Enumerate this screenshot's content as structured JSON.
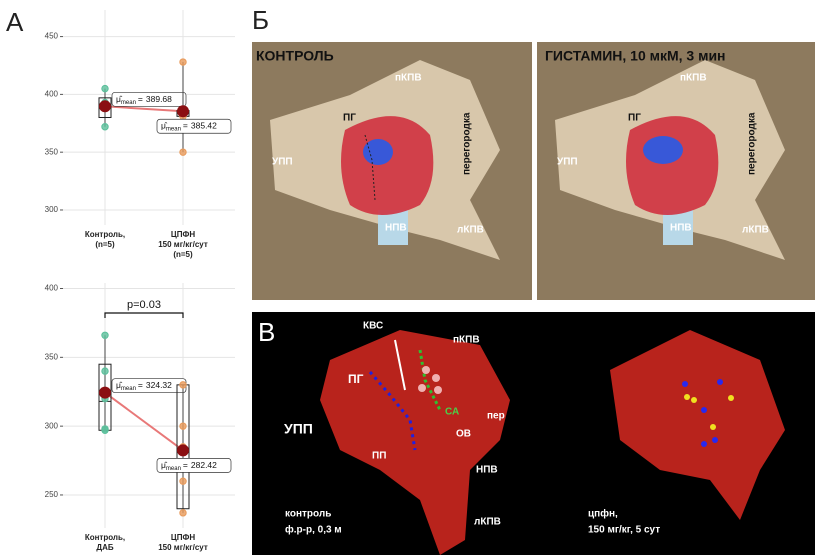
{
  "panels": {
    "a": "А",
    "b": "Б",
    "v": "В"
  },
  "chart_data": [
    {
      "type": "box",
      "categories": [
        [
          "Контроль,",
          "(n=5)"
        ],
        [
          "ЦПФН",
          "150 мг/кг/сут",
          "(n=5)"
        ]
      ],
      "ylim": [
        287,
        473
      ],
      "yticks": [
        300,
        350,
        400,
        450
      ],
      "grid": true,
      "colors": [
        "#5bbf9b",
        "#e89a5a"
      ],
      "mean_color": "#8b0f12",
      "line_color": "#e87878",
      "points": [
        [
          405,
          393,
          390,
          388,
          372
        ],
        [
          428,
          385,
          383,
          381,
          350
        ]
      ],
      "q1": [
        380,
        381
      ],
      "median": [
        389,
        384
      ],
      "q3": [
        397,
        386
      ],
      "whisker_low": [
        372,
        350
      ],
      "whisker_high": [
        405,
        428
      ],
      "means": [
        389.68,
        385.42
      ],
      "mean_symbol": "μ̂",
      "mean_sub": "mean",
      "equals": "="
    },
    {
      "type": "box",
      "categories": [
        [
          "Контроль,",
          "ДАБ"
        ],
        [
          "ЦПФН",
          "150 мг/кг/сут"
        ]
      ],
      "ylim": [
        226,
        404
      ],
      "yticks": [
        250,
        300,
        350,
        400
      ],
      "grid": true,
      "colors": [
        "#5bbf9b",
        "#e89a5a"
      ],
      "mean_color": "#8b0f12",
      "line_color": "#e87878",
      "points": [
        [
          366,
          340,
          320,
          298,
          297
        ],
        [
          330,
          300,
          285,
          260,
          237
        ]
      ],
      "q1": [
        297,
        240
      ],
      "median": [
        318,
        282
      ],
      "q3": [
        345,
        330
      ],
      "whisker_low": [
        297,
        237
      ],
      "whisker_high": [
        366,
        330
      ],
      "means": [
        324.32,
        282.42
      ],
      "mean_symbol": "μ̂",
      "mean_sub": "mean",
      "equals": "=",
      "annotation": "p=0.03"
    }
  ],
  "photos": {
    "left": {
      "title": "КОНТРОЛЬ",
      "pkpv": "пКПВ",
      "pg": "ПГ",
      "sept": "перегородка",
      "upp": "УПП",
      "npv": "НПВ",
      "lkpv": "лКПВ"
    },
    "right": {
      "title": "ГИСТАМИН, 10 мкМ, 3 мин",
      "pkpv": "пКПВ",
      "pg": "ПГ",
      "sept": "перегородка",
      "upp": "УПП",
      "npv": "НПВ",
      "lkpv": "лКПВ"
    }
  },
  "maps": {
    "kvs": "КВС",
    "pkpv": "пКПВ",
    "pg": "ПГ",
    "sa": "СА",
    "per": "пер",
    "ov": "ОВ",
    "upp": "УПП",
    "pp": "ПП",
    "npv": "НПВ",
    "lkpv": "лКПВ",
    "left_caption": [
      "контроль",
      "ф.р-р, 0,3 м"
    ],
    "right_caption": [
      "цпфн,",
      "150 мг/кг, 5 сут"
    ]
  }
}
